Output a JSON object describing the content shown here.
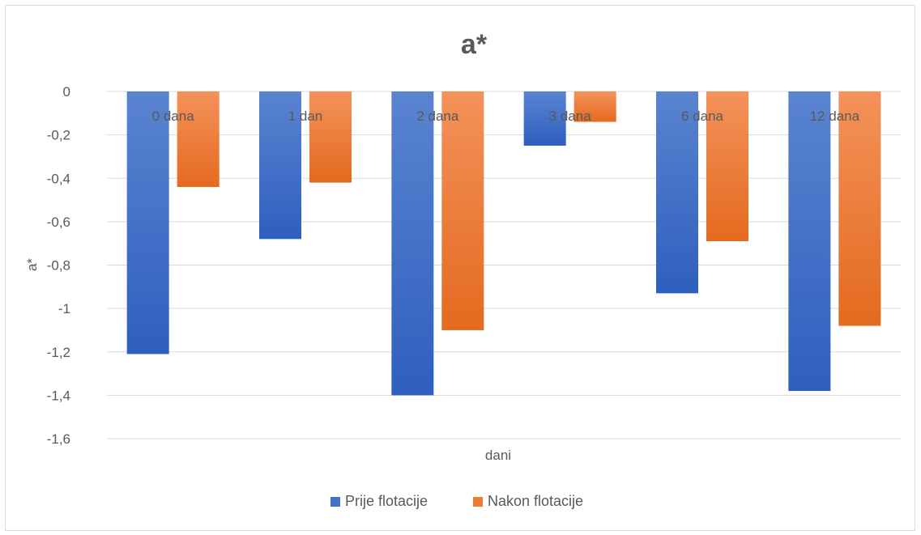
{
  "chart_data": {
    "type": "bar",
    "title": "a*",
    "xlabel": "dani",
    "ylabel": "a*",
    "ylim": [
      -1.6,
      0
    ],
    "yticks": [
      0,
      -0.2,
      -0.4,
      -0.6,
      -0.8,
      -1,
      -1.2,
      -1.4,
      -1.6
    ],
    "ytick_labels": [
      "0",
      "-0,2",
      "-0,4",
      "-0,6",
      "-0,8",
      "-1",
      "-1,2",
      "-1,4",
      "-1,6"
    ],
    "grid": true,
    "legend_position": "bottom",
    "categories": [
      "0 dana",
      "1 dan",
      "2 dana",
      "3 dana",
      "6 dana",
      "12 dana"
    ],
    "series": [
      {
        "name": "Prije flotacije",
        "color": "#4472c4",
        "values": [
          -1.21,
          -0.68,
          -1.4,
          -0.25,
          -0.93,
          -1.38
        ]
      },
      {
        "name": "Nakon flotacije",
        "color": "#ed7d31",
        "values": [
          -0.44,
          -0.42,
          -1.1,
          -0.14,
          -0.69,
          -1.08
        ]
      }
    ]
  }
}
